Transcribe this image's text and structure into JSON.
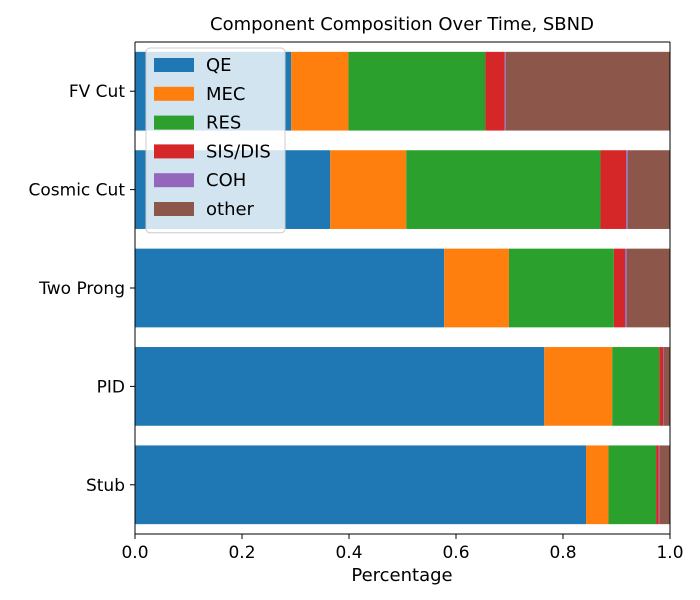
{
  "chart_data": {
    "type": "bar",
    "orientation": "horizontal",
    "stacked": true,
    "title": "Component Composition Over Time, SBND",
    "xlabel": "Percentage",
    "ylabel": "",
    "xlim": [
      0,
      1
    ],
    "xticks": [
      "0.0",
      "0.2",
      "0.4",
      "0.6",
      "0.8",
      "1.0"
    ],
    "grid": false,
    "legend_position": "top-left",
    "categories": [
      "FV Cut",
      "Cosmic Cut",
      "Two Prong",
      "PID",
      "Stub"
    ],
    "series": [
      {
        "name": "QE",
        "color": "#1f77b4",
        "values": [
          0.292,
          0.365,
          0.578,
          0.765,
          0.843
        ]
      },
      {
        "name": "MEC",
        "color": "#ff7f0e",
        "values": [
          0.107,
          0.142,
          0.121,
          0.127,
          0.042
        ]
      },
      {
        "name": "RES",
        "color": "#2ca02c",
        "values": [
          0.256,
          0.363,
          0.196,
          0.088,
          0.089
        ]
      },
      {
        "name": "SIS/DIS",
        "color": "#d62728",
        "values": [
          0.036,
          0.048,
          0.021,
          0.007,
          0.005
        ]
      },
      {
        "name": "COH",
        "color": "#9467bd",
        "values": [
          0.002,
          0.003,
          0.003,
          0.001,
          0.001
        ]
      },
      {
        "name": "other",
        "color": "#8c564b",
        "values": [
          0.307,
          0.079,
          0.081,
          0.012,
          0.02
        ]
      }
    ]
  }
}
